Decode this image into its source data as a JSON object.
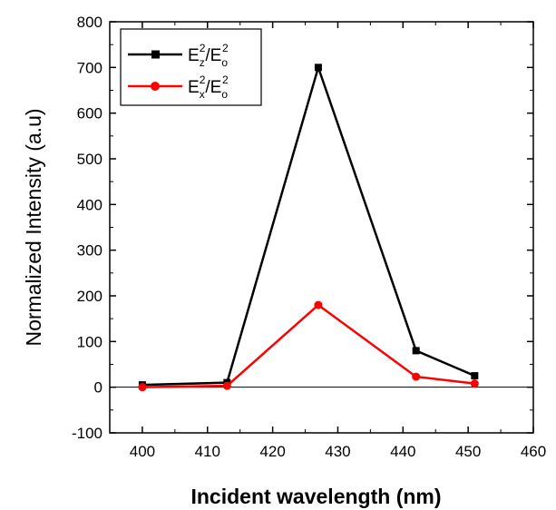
{
  "chart_data": {
    "type": "line",
    "xlabel": "Incident wavelength (nm)",
    "ylabel": "Normalized Intensity (a.u)",
    "xlim": [
      395,
      460
    ],
    "ylim": [
      -100,
      800
    ],
    "x_ticks": [
      400,
      410,
      420,
      430,
      440,
      450,
      460
    ],
    "y_ticks": [
      -100,
      0,
      100,
      200,
      300,
      400,
      500,
      600,
      700,
      800
    ],
    "zero_line": true,
    "grid": false,
    "legend_position": "top-left",
    "series": [
      {
        "name": "Ez²/Eo²",
        "legend": {
          "main": "E",
          "sub1": "z",
          "sup1": "2",
          "slash": "/E",
          "sub2": "o",
          "sup2": "2"
        },
        "color": "#000000",
        "marker": "square",
        "x": [
          400,
          413,
          427,
          442,
          451
        ],
        "y": [
          5,
          10,
          700,
          80,
          25
        ]
      },
      {
        "name": "Ex²/Eo²",
        "legend": {
          "main": "E",
          "sub1": "x",
          "sup1": "2",
          "slash": "/E",
          "sub2": "o",
          "sup2": "2"
        },
        "color": "#ff0000",
        "marker": "circle",
        "x": [
          400,
          413,
          427,
          442,
          451
        ],
        "y": [
          0,
          3,
          180,
          23,
          8
        ]
      }
    ]
  }
}
